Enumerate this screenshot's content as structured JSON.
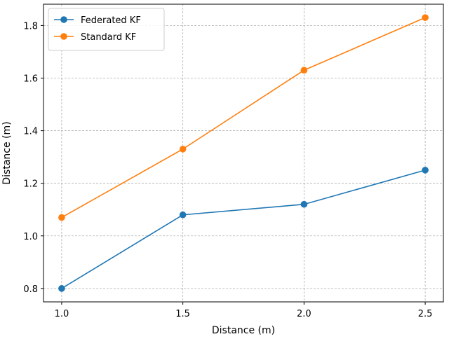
{
  "chart_data": {
    "type": "line",
    "title": "",
    "xlabel": "Distance (m)",
    "ylabel": "Distance (m)",
    "x": [
      1.0,
      1.5,
      2.0,
      2.5
    ],
    "xlim": [
      0.925,
      2.575
    ],
    "ylim": [
      0.749,
      1.881
    ],
    "xticks": [
      1.0,
      1.5,
      2.0,
      2.5
    ],
    "xtick_labels": [
      "1.0",
      "1.5",
      "2.0",
      "2.5"
    ],
    "yticks": [
      0.8,
      1.0,
      1.2,
      1.4,
      1.6,
      1.8
    ],
    "ytick_labels": [
      "0.8",
      "1.0",
      "1.2",
      "1.4",
      "1.6",
      "1.8"
    ],
    "grid": true,
    "legend_position": "top-left",
    "series": [
      {
        "name": "Federated KF",
        "color": "#1f77b4",
        "marker": "circle",
        "values": [
          0.8,
          1.08,
          1.12,
          1.25
        ]
      },
      {
        "name": "Standard KF",
        "color": "#ff7f0e",
        "marker": "circle",
        "values": [
          1.07,
          1.33,
          1.63,
          1.83
        ]
      }
    ]
  }
}
